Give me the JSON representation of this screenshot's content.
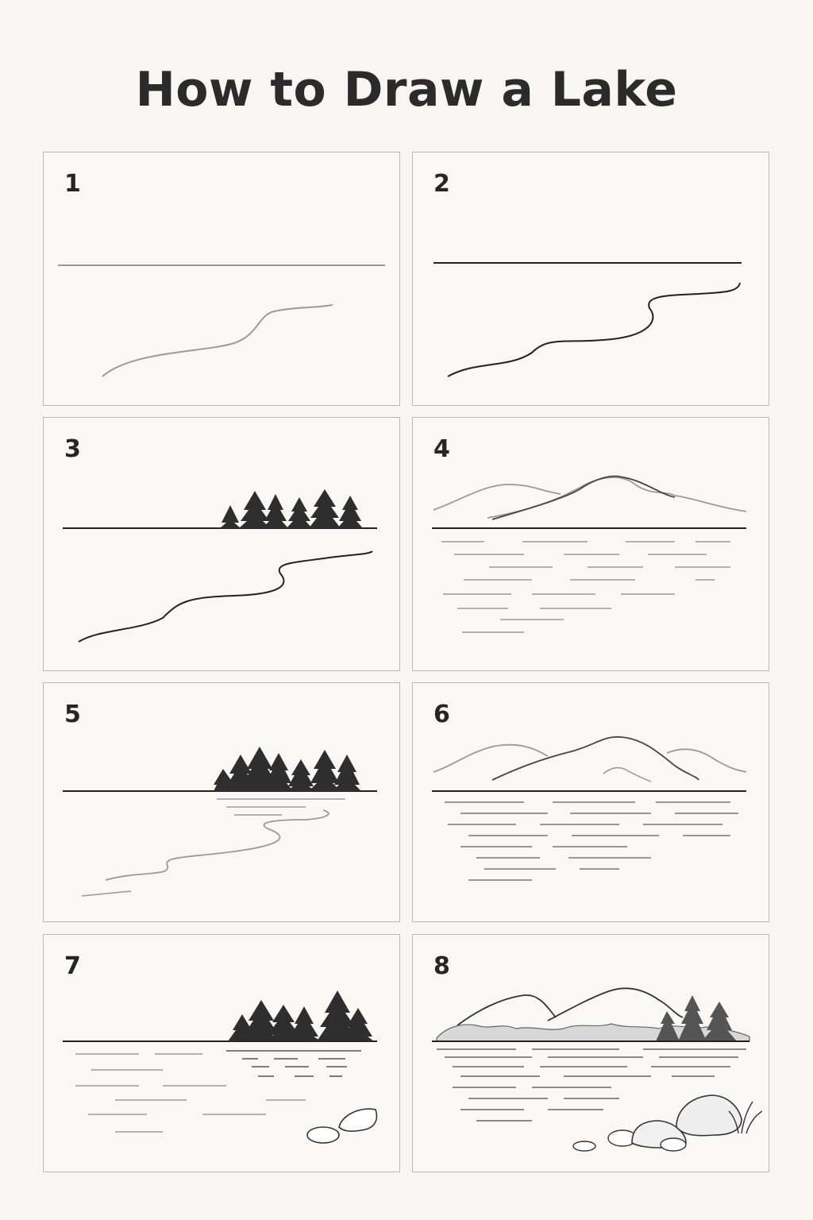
{
  "page": {
    "title": "How to Draw a Lake"
  },
  "steps": [
    {
      "number": "1"
    },
    {
      "number": "2"
    },
    {
      "number": "3"
    },
    {
      "number": "4"
    },
    {
      "number": "5"
    },
    {
      "number": "6"
    },
    {
      "number": "7"
    },
    {
      "number": "8"
    }
  ],
  "colors": {
    "background": "#f7f6f2",
    "panel_border": "#b9b9b9",
    "ink_dark": "#222222",
    "ink_light": "#9a9a9a"
  }
}
